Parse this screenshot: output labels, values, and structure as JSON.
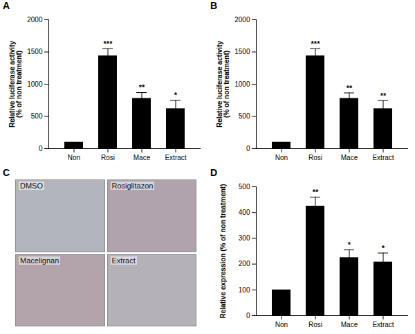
{
  "chart_data": [
    {
      "type": "bar",
      "title": "A",
      "categories": [
        "Non",
        "Rosi",
        "Mace",
        "Extract"
      ],
      "values": [
        100,
        1440,
        780,
        620
      ],
      "errors": [
        null,
        110,
        90,
        130
      ],
      "annotations": [
        null,
        "***",
        "**",
        "*"
      ],
      "y_label": "Relative luciferase activity\n(% of non treatment)",
      "color": "#000000",
      "ylim": [
        0,
        2000
      ],
      "yticks": [
        0,
        500,
        1000,
        1500,
        2000
      ]
    },
    {
      "type": "bar",
      "title": "B",
      "categories": [
        "Non",
        "Rosi",
        "Mace",
        "Extract"
      ],
      "values": [
        100,
        1440,
        780,
        620
      ],
      "errors": [
        null,
        110,
        85,
        125
      ],
      "annotations": [
        null,
        "***",
        "**",
        "**"
      ],
      "y_label": "Relative luciferase activity\n(% of non treatment)",
      "color": "#000000",
      "ylim": [
        0,
        2000
      ],
      "yticks": [
        0,
        500,
        1000,
        1500,
        2000
      ]
    },
    {
      "type": "image",
      "title": "C",
      "labels": [
        "DMSO",
        "Rosiglitazon",
        "Macelignan",
        "Extract"
      ]
    },
    {
      "type": "bar",
      "title": "D",
      "categories": [
        "Non",
        "Rosi",
        "Mace",
        "Extract"
      ],
      "values": [
        100,
        425,
        225,
        208
      ],
      "errors": [
        null,
        35,
        30,
        35
      ],
      "annotations": [
        null,
        "**",
        "*",
        "*"
      ],
      "y_label": "Relative expression (% of non treatment)",
      "color": "#000000",
      "ylim": [
        0,
        500
      ],
      "yticks": [
        0,
        100,
        200,
        300,
        400,
        500
      ]
    }
  ]
}
